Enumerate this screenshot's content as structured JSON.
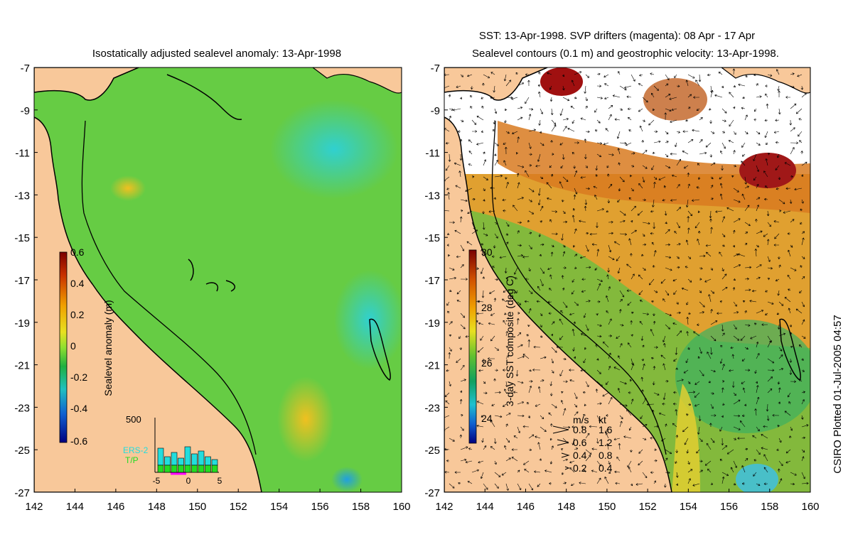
{
  "left_panel": {
    "title": "Isostatically adjusted sealevel anomaly: 13-Apr-1998",
    "colorbar": {
      "label": "Sealevel anomaly (m)",
      "min": -0.6,
      "max": 0.6,
      "ticks": [
        "0.6",
        "0.4",
        "0.2",
        "0",
        "-0.2",
        "-0.4",
        "-0.6"
      ]
    },
    "inset": {
      "ymax_label": "500",
      "legend": [
        "ERS-2",
        "T/P"
      ],
      "xticks": [
        "-5",
        "0",
        "5"
      ],
      "ers2_color": "#22dddd",
      "tp_color": "#22dd22",
      "drift_color": "#ff00ff"
    }
  },
  "right_panel": {
    "title_line1": "SST: 13-Apr-1998. SVP drifters (magenta): 08 Apr - 17 Apr",
    "title_line2": "Sealevel contours (0.1 m) and geostrophic velocity: 13-Apr-1998.",
    "colorbar": {
      "label": "3-day SST composite (deg C)",
      "min": 23,
      "max": 30,
      "ticks": [
        "30",
        "28",
        "26",
        "24"
      ]
    },
    "velocity_key": {
      "header_ms": "m/s",
      "header_kt": "kt",
      "rows": [
        {
          "ms": "0.8",
          "kt": "1.6"
        },
        {
          "ms": "0.6",
          "kt": "1.2"
        },
        {
          "ms": "0.4",
          "kt": "0.8"
        },
        {
          "ms": "0.2",
          "kt": "0.4"
        }
      ]
    }
  },
  "axes": {
    "lat_ticks": [
      "-7",
      "-9",
      "-11",
      "-13",
      "-15",
      "-17",
      "-19",
      "-21",
      "-23",
      "-25",
      "-27"
    ],
    "lon_ticks": [
      "142",
      "144",
      "146",
      "148",
      "150",
      "152",
      "154",
      "156",
      "158",
      "160"
    ]
  },
  "credit": "CSIRO Plotted 01-Jul-2005 04:57",
  "colors": {
    "land": "#f8c89a",
    "ocean_sla": "#66cc44",
    "ocean_sst": "#e0a030",
    "cloud": "#ffffff",
    "coast": "#000000"
  }
}
